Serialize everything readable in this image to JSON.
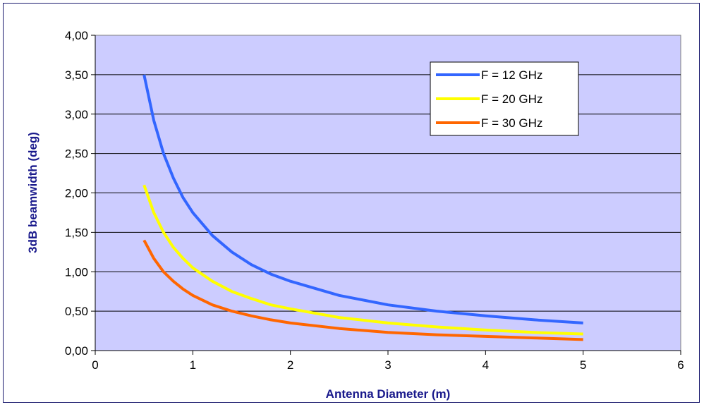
{
  "chart_data": {
    "type": "line",
    "title": "",
    "xlabel": "Antenna Diameter (m)",
    "ylabel": "3dB beamwidth (deg)",
    "xlim": [
      0,
      6
    ],
    "ylim": [
      0,
      4
    ],
    "x_ticks": [
      "0",
      "1",
      "2",
      "3",
      "4",
      "5",
      "6"
    ],
    "y_ticks": [
      "0,00",
      "0,50",
      "1,00",
      "1,50",
      "2,00",
      "2,50",
      "3,00",
      "3,50",
      "4,00"
    ],
    "grid": "horizontal",
    "legend_position": "top-right",
    "plot_background": "#ccccff",
    "series": [
      {
        "name": "F = 12 GHz",
        "color": "#3366ff",
        "x": [
          0.5,
          0.6,
          0.7,
          0.8,
          0.9,
          1.0,
          1.2,
          1.4,
          1.6,
          1.8,
          2.0,
          2.5,
          3.0,
          3.5,
          4.0,
          4.5,
          5.0
        ],
        "y": [
          3.5,
          2.92,
          2.5,
          2.19,
          1.94,
          1.75,
          1.46,
          1.25,
          1.09,
          0.97,
          0.88,
          0.7,
          0.58,
          0.5,
          0.44,
          0.39,
          0.35
        ]
      },
      {
        "name": "F = 20 GHz",
        "color": "#ffff00",
        "x": [
          0.5,
          0.6,
          0.7,
          0.8,
          0.9,
          1.0,
          1.2,
          1.4,
          1.6,
          1.8,
          2.0,
          2.5,
          3.0,
          3.5,
          4.0,
          4.5,
          5.0
        ],
        "y": [
          2.1,
          1.75,
          1.5,
          1.31,
          1.17,
          1.05,
          0.88,
          0.75,
          0.66,
          0.58,
          0.53,
          0.42,
          0.35,
          0.3,
          0.26,
          0.23,
          0.21
        ]
      },
      {
        "name": "F = 30 GHz",
        "color": "#ff6600",
        "x": [
          0.5,
          0.6,
          0.7,
          0.8,
          0.9,
          1.0,
          1.2,
          1.4,
          1.6,
          1.8,
          2.0,
          2.5,
          3.0,
          3.5,
          4.0,
          4.5,
          5.0
        ],
        "y": [
          1.4,
          1.17,
          1.0,
          0.88,
          0.78,
          0.7,
          0.58,
          0.5,
          0.44,
          0.39,
          0.35,
          0.28,
          0.23,
          0.2,
          0.18,
          0.16,
          0.14
        ]
      }
    ]
  }
}
